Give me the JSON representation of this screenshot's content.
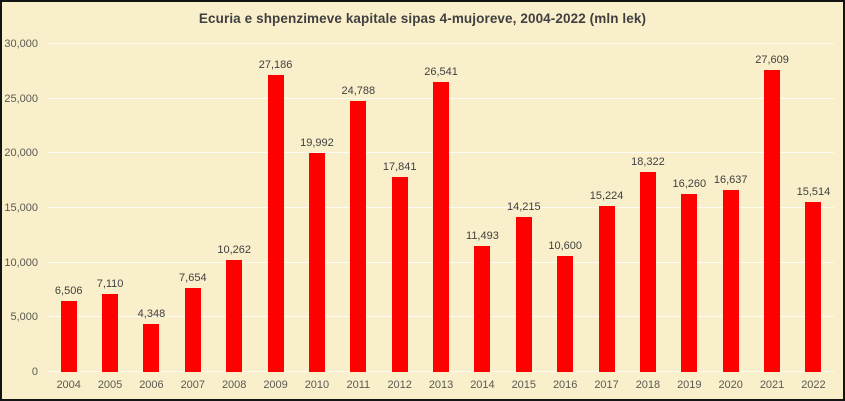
{
  "title": "Ecuria e shpenzimeve kapitale sipas 4-mujoreve, 2004-2022 (mln lek)",
  "colors": {
    "background": "#FAEFCB",
    "border": "#141414",
    "bar": "#FE0000",
    "title_text": "#404040",
    "axis_text": "#5a5a52",
    "value_label_text": "#404040",
    "gridline": "rgba(255,255,255,0.75)"
  },
  "chart_data": {
    "type": "bar",
    "title": "Ecuria e shpenzimeve kapitale sipas 4-mujoreve, 2004-2022 (mln lek)",
    "xlabel": "",
    "ylabel": "",
    "categories": [
      "2004",
      "2005",
      "2006",
      "2007",
      "2008",
      "2009",
      "2010",
      "2011",
      "2012",
      "2013",
      "2014",
      "2015",
      "2016",
      "2017",
      "2018",
      "2019",
      "2020",
      "2021",
      "2022"
    ],
    "values": [
      6506,
      7110,
      4348,
      7654,
      10262,
      27186,
      19992,
      24788,
      17841,
      26541,
      11493,
      14215,
      10600,
      15224,
      18322,
      16260,
      16637,
      27609,
      15514
    ],
    "value_labels": [
      "6,506",
      "7,110",
      "4,348",
      "7,654",
      "10,262",
      "27,186",
      "19,992",
      "24,788",
      "17,841",
      "26,541",
      "11,493",
      "14,215",
      "10,600",
      "15,224",
      "18,322",
      "16,260",
      "16,637",
      "27,609",
      "15,514"
    ],
    "y_ticks": [
      {
        "value": 0,
        "label": "0"
      },
      {
        "value": 5000,
        "label": "5,000"
      },
      {
        "value": 10000,
        "label": "10,000"
      },
      {
        "value": 15000,
        "label": "15,000"
      },
      {
        "value": 20000,
        "label": "20,000"
      },
      {
        "value": 25000,
        "label": "25,000"
      },
      {
        "value": 30000,
        "label": "30,000"
      }
    ],
    "ylim": [
      0,
      30000
    ],
    "grid": true,
    "legend": false
  }
}
